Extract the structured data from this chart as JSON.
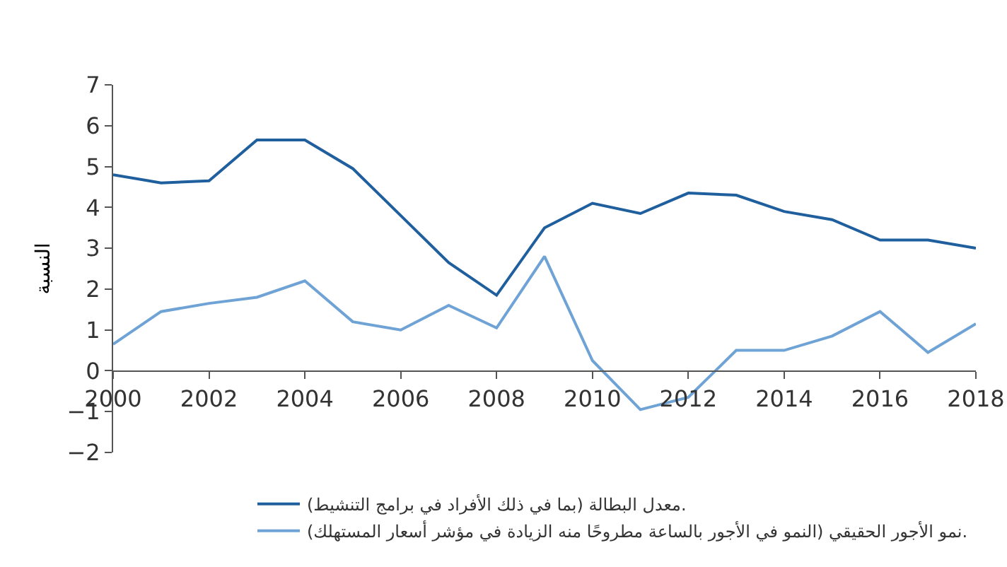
{
  "chart_data": {
    "type": "line",
    "ylabel": "النسبة",
    "x": [
      2000,
      2001,
      2002,
      2003,
      2004,
      2005,
      2006,
      2007,
      2008,
      2009,
      2010,
      2011,
      2012,
      2013,
      2014,
      2015,
      2016,
      2017,
      2018
    ],
    "series": [
      {
        "name": "معدل البطالة (بما في ذلك الأفراد في برامج التنشيط).",
        "color": "#1f5f9e",
        "values": [
          4.8,
          4.6,
          4.65,
          5.65,
          5.65,
          4.95,
          3.8,
          2.65,
          1.85,
          3.5,
          4.1,
          3.85,
          4.35,
          4.3,
          3.9,
          3.7,
          3.2,
          3.2,
          3.0
        ]
      },
      {
        "name": "نمو الأجور الحقيقي (النمو في الأجور بالساعة مطروحًا منه الزيادة في مؤشر أسعار المستهلك).",
        "color": "#6fa3d6",
        "values": [
          0.65,
          1.45,
          1.65,
          1.8,
          2.2,
          1.2,
          1.0,
          1.6,
          1.05,
          2.8,
          0.25,
          -0.95,
          -0.65,
          0.5,
          0.5,
          0.85,
          1.45,
          0.45,
          1.15
        ]
      }
    ],
    "xlim": [
      2000,
      2018
    ],
    "xticks": [
      2000,
      2002,
      2004,
      2006,
      2008,
      2010,
      2012,
      2014,
      2016,
      2018
    ],
    "ylim": [
      -2,
      7
    ],
    "yticks": [
      {
        "value": -2,
        "label": "−2"
      },
      {
        "value": -1,
        "label": "−1"
      },
      0,
      1,
      2,
      3,
      4,
      5,
      6,
      7
    ],
    "grid": false,
    "legend": "bottom right",
    "marker": "none",
    "line_style": "solid"
  }
}
